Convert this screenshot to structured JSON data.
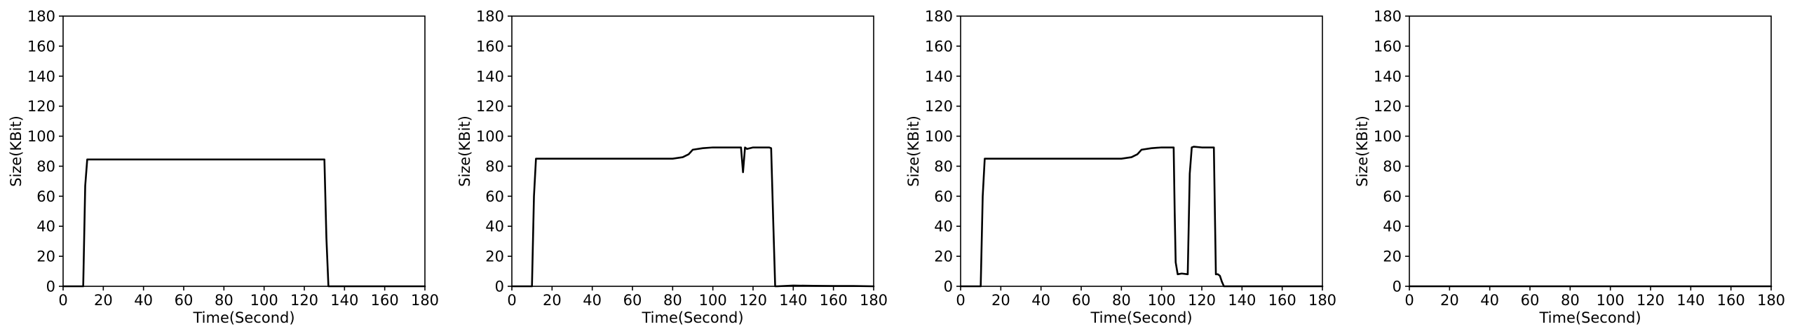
{
  "chart_data": [
    {
      "type": "line",
      "xlabel": "Time(Second)",
      "ylabel": "Size(KBit)",
      "xlim": [
        0,
        180
      ],
      "ylim": [
        0,
        180
      ],
      "xticks": [
        0,
        20,
        40,
        60,
        80,
        100,
        120,
        140,
        160,
        180
      ],
      "yticks": [
        0,
        20,
        40,
        60,
        80,
        100,
        120,
        140,
        160,
        180
      ],
      "grid": false,
      "line_color": "#000000",
      "series": [
        {
          "x": [
            0,
            10,
            11,
            12,
            20,
            40,
            60,
            80,
            100,
            120,
            129,
            130,
            131,
            132,
            140,
            160,
            180
          ],
          "y": [
            0,
            0,
            67,
            84.5,
            84.5,
            84.5,
            84.5,
            84.5,
            84.5,
            84.5,
            84.5,
            84.5,
            32,
            0,
            0,
            0,
            0
          ]
        }
      ]
    },
    {
      "type": "line",
      "xlabel": "Time(Second)",
      "ylabel": "Size(KBit)",
      "xlim": [
        0,
        180
      ],
      "ylim": [
        0,
        180
      ],
      "xticks": [
        0,
        20,
        40,
        60,
        80,
        100,
        120,
        140,
        160,
        180
      ],
      "yticks": [
        0,
        20,
        40,
        60,
        80,
        100,
        120,
        140,
        160,
        180
      ],
      "grid": false,
      "line_color": "#000000",
      "series": [
        {
          "x": [
            0,
            10,
            11,
            12,
            20,
            30,
            40,
            50,
            60,
            70,
            80,
            85,
            88,
            90,
            95,
            100,
            105,
            110,
            114,
            115,
            116,
            117,
            120,
            125,
            128,
            129,
            130,
            131,
            132,
            140,
            150,
            160,
            170,
            180
          ],
          "y": [
            0,
            0,
            60,
            85,
            85,
            85,
            85,
            85,
            85,
            85,
            85,
            86,
            88,
            91,
            92,
            92.5,
            92.5,
            92.5,
            92.5,
            76,
            92.5,
            91.5,
            92.5,
            92.5,
            92.5,
            92,
            45,
            0,
            0,
            0.5,
            0.3,
            0.2,
            0.2,
            0
          ]
        }
      ]
    },
    {
      "type": "line",
      "xlabel": "Time(Second)",
      "ylabel": "Size(KBit)",
      "xlim": [
        0,
        180
      ],
      "ylim": [
        0,
        180
      ],
      "xticks": [
        0,
        20,
        40,
        60,
        80,
        100,
        120,
        140,
        160,
        180
      ],
      "yticks": [
        0,
        20,
        40,
        60,
        80,
        100,
        120,
        140,
        160,
        180
      ],
      "grid": false,
      "line_color": "#000000",
      "series": [
        {
          "x": [
            0,
            10,
            11,
            12,
            20,
            30,
            40,
            50,
            60,
            70,
            80,
            85,
            88,
            90,
            95,
            100,
            106,
            106.5,
            107,
            108,
            110,
            113,
            114,
            115,
            116,
            120,
            124,
            126,
            126.5,
            127,
            128,
            129,
            130,
            131,
            132,
            140,
            160,
            180
          ],
          "y": [
            0,
            0,
            60,
            85,
            85,
            85,
            85,
            85,
            85,
            85,
            85,
            86,
            88,
            91,
            92,
            92.5,
            92.5,
            50,
            16,
            8,
            8.5,
            8,
            75,
            92.5,
            93,
            92.5,
            92.5,
            92.5,
            50,
            8,
            8,
            7,
            3,
            0,
            0,
            0,
            0,
            0
          ]
        }
      ]
    },
    {
      "type": "line",
      "xlabel": "Time(Second)",
      "ylabel": "Size(KBit)",
      "xlim": [
        0,
        180
      ],
      "ylim": [
        0,
        180
      ],
      "xticks": [
        0,
        20,
        40,
        60,
        80,
        100,
        120,
        140,
        160,
        180
      ],
      "yticks": [
        0,
        20,
        40,
        60,
        80,
        100,
        120,
        140,
        160,
        180
      ],
      "grid": false,
      "line_color": "#000000",
      "series": [
        {
          "x": [
            0,
            180
          ],
          "y": [
            0,
            0
          ]
        }
      ]
    }
  ]
}
